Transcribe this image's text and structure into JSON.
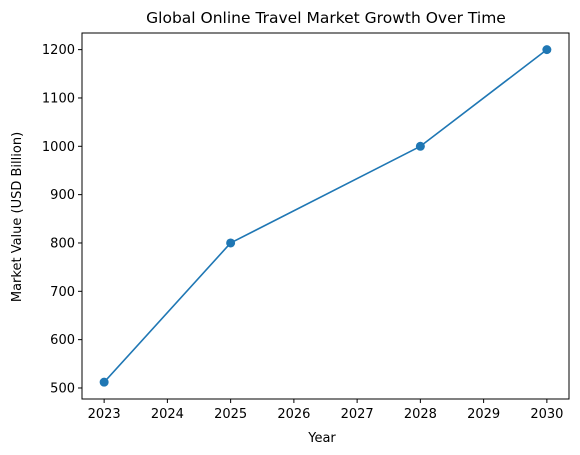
{
  "chart_data": {
    "type": "line",
    "title": "Global Online Travel Market Growth Over Time",
    "xlabel": "Year",
    "ylabel": "Market Value (USD Billion)",
    "x": [
      2023,
      2025,
      2028,
      2030
    ],
    "series": [
      {
        "values": [
          512,
          800,
          1000,
          1200
        ],
        "color": "#1f77b4",
        "marker": "circle"
      }
    ],
    "xlim": [
      2022.65,
      2030.35
    ],
    "ylim": [
      477.2,
      1234.4
    ],
    "xticks": [
      2023,
      2024,
      2025,
      2026,
      2027,
      2028,
      2029,
      2030
    ],
    "yticks": [
      500,
      600,
      700,
      800,
      900,
      1000,
      1100,
      1200
    ],
    "grid": false,
    "legend": "none"
  }
}
